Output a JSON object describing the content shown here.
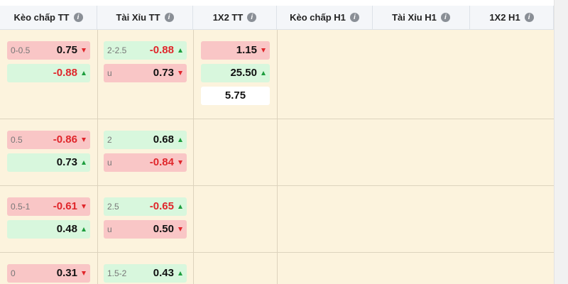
{
  "header": {
    "columns": [
      "Kèo chấp TT",
      "Tài Xỉu TT",
      "1X2 TT",
      "Kèo chấp H1",
      "Tài Xỉu H1",
      "1X2 H1"
    ]
  },
  "table": {
    "rows": [
      {
        "handicap": [
          {
            "line": "0-0.5",
            "odds": "0.75",
            "trend": "down"
          },
          {
            "odds": "-0.88",
            "trend": "up"
          }
        ],
        "total": [
          {
            "line": "2-2.5",
            "odds": "-0.88",
            "trend": "up"
          },
          {
            "line": "u",
            "odds": "0.73",
            "trend": "down"
          }
        ],
        "x12": [
          {
            "odds": "1.15",
            "trend": "down"
          },
          {
            "odds": "25.50",
            "trend": "up"
          },
          {
            "odds": "5.75"
          }
        ]
      },
      {
        "handicap": [
          {
            "line": "0.5",
            "odds": "-0.86",
            "trend": "down"
          },
          {
            "odds": "0.73",
            "trend": "up"
          }
        ],
        "total": [
          {
            "line": "2",
            "odds": "0.68",
            "trend": "up"
          },
          {
            "line": "u",
            "odds": "-0.84",
            "trend": "down"
          }
        ],
        "x12": []
      },
      {
        "handicap": [
          {
            "line": "0.5-1",
            "odds": "-0.61",
            "trend": "down"
          },
          {
            "odds": "0.48",
            "trend": "up"
          }
        ],
        "total": [
          {
            "line": "2.5",
            "odds": "-0.65",
            "trend": "up"
          },
          {
            "line": "u",
            "odds": "0.50",
            "trend": "down"
          }
        ],
        "x12": []
      },
      {
        "handicap": [
          {
            "line": "0",
            "odds": "0.31",
            "trend": "down"
          }
        ],
        "total": [
          {
            "line": "1.5-2",
            "odds": "0.43",
            "trend": "up"
          }
        ],
        "x12": []
      }
    ]
  }
}
